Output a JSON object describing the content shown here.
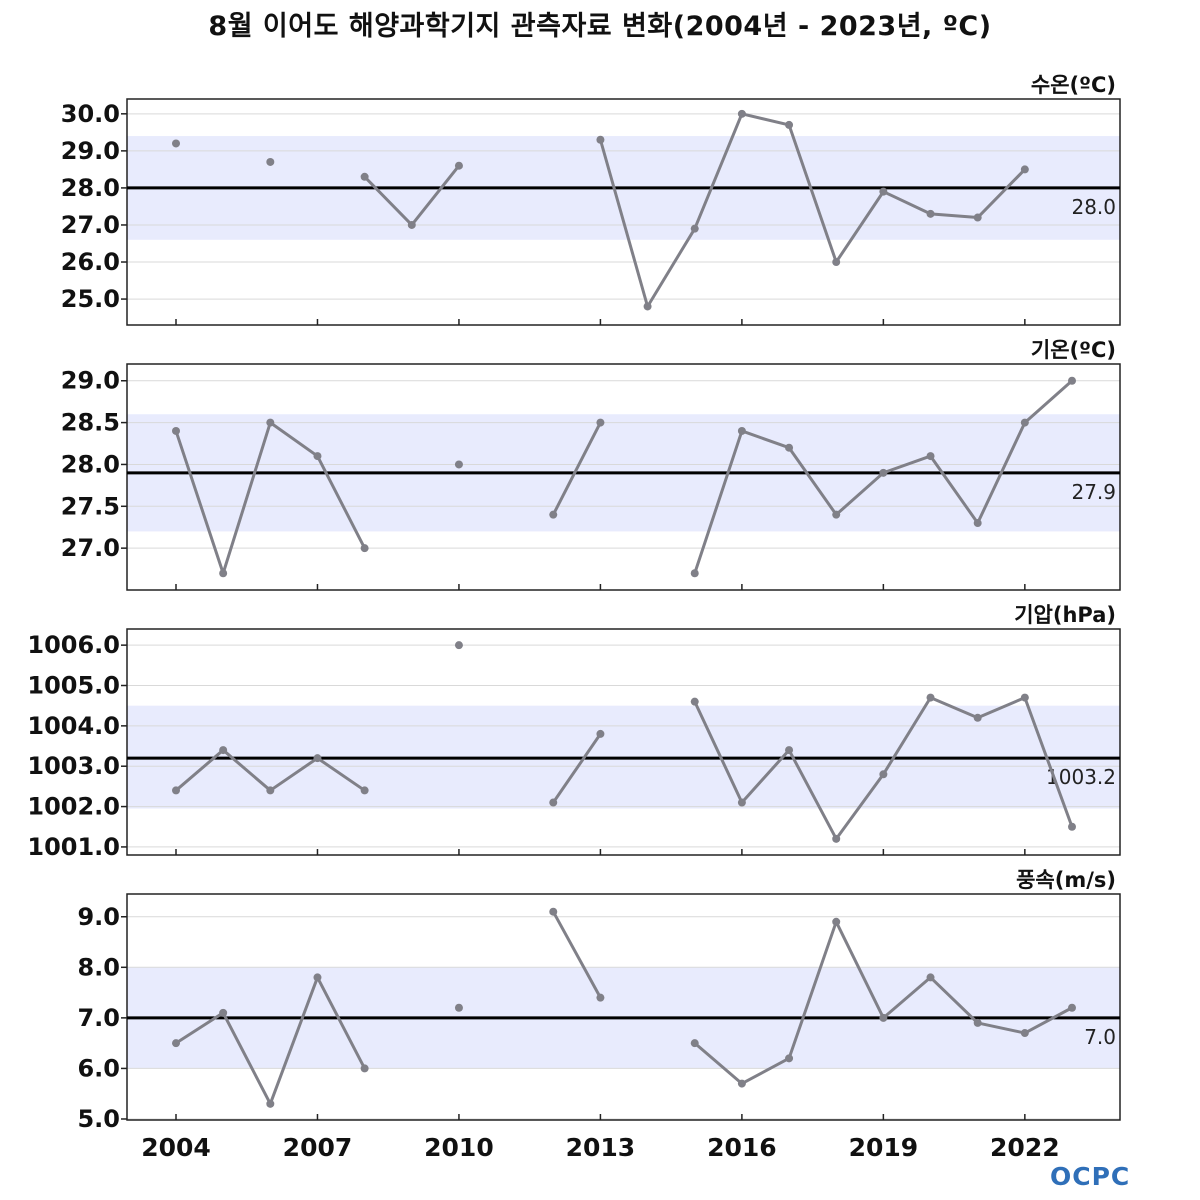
{
  "title": "8월 이어도 해양과학기지 관측자료 변화(2004년 - 2023년, ºC)",
  "logo_text": "OCPC",
  "colors": {
    "line": "#808088",
    "band": "#e8ebfd",
    "mean": "#000000",
    "grid": "#d9d9d9"
  },
  "chart_data": [
    {
      "type": "line",
      "unit_label": "수온(ºC)",
      "x": [
        2004,
        2005,
        2006,
        2007,
        2008,
        2009,
        2010,
        2011,
        2012,
        2013,
        2014,
        2015,
        2016,
        2017,
        2018,
        2019,
        2020,
        2021,
        2022,
        2023
      ],
      "values": [
        29.2,
        null,
        28.7,
        null,
        28.3,
        27.0,
        28.6,
        null,
        null,
        29.3,
        24.8,
        26.9,
        30.0,
        29.7,
        26.0,
        27.9,
        27.3,
        27.2,
        28.5,
        null
      ],
      "mean": 28.0,
      "mean_label": "28.0",
      "band": [
        26.6,
        29.4
      ],
      "ylim": [
        24.3,
        30.4
      ],
      "yticks": [
        25.0,
        26.0,
        27.0,
        28.0,
        29.0,
        30.0
      ],
      "ytick_labels": [
        "25.0",
        "26.0",
        "27.0",
        "28.0",
        "29.0",
        "30.0"
      ]
    },
    {
      "type": "line",
      "unit_label": "기온(ºC)",
      "x": [
        2004,
        2005,
        2006,
        2007,
        2008,
        2009,
        2010,
        2011,
        2012,
        2013,
        2014,
        2015,
        2016,
        2017,
        2018,
        2019,
        2020,
        2021,
        2022,
        2023
      ],
      "values": [
        28.4,
        26.7,
        28.5,
        28.1,
        27.0,
        null,
        28.0,
        null,
        27.4,
        28.5,
        null,
        26.7,
        28.4,
        28.2,
        27.4,
        27.9,
        28.1,
        27.3,
        28.5,
        29.0
      ],
      "mean": 27.9,
      "mean_label": "27.9",
      "band": [
        27.2,
        28.6
      ],
      "ylim": [
        26.5,
        29.2
      ],
      "yticks": [
        27.0,
        27.5,
        28.0,
        28.5,
        29.0
      ],
      "ytick_labels": [
        "27.0",
        "27.5",
        "28.0",
        "28.5",
        "29.0"
      ]
    },
    {
      "type": "line",
      "unit_label": "기압(hPa)",
      "x": [
        2004,
        2005,
        2006,
        2007,
        2008,
        2009,
        2010,
        2011,
        2012,
        2013,
        2014,
        2015,
        2016,
        2017,
        2018,
        2019,
        2020,
        2021,
        2022,
        2023
      ],
      "values": [
        1002.4,
        1003.4,
        1002.4,
        1003.2,
        1002.4,
        null,
        1006.0,
        null,
        1002.1,
        1003.8,
        null,
        1004.6,
        1002.1,
        1003.4,
        1001.2,
        1002.8,
        1004.7,
        1004.2,
        1004.7,
        1001.5
      ],
      "mean": 1003.2,
      "mean_label": "1003.2",
      "band": [
        1001.95,
        1004.5
      ],
      "ylim": [
        1000.8,
        1006.4
      ],
      "yticks": [
        1001.0,
        1002.0,
        1003.0,
        1004.0,
        1005.0,
        1006.0
      ],
      "ytick_labels": [
        "1001.0",
        "1002.0",
        "1003.0",
        "1004.0",
        "1005.0",
        "1006.0"
      ]
    },
    {
      "type": "line",
      "unit_label": "풍속(m/s)",
      "x": [
        2004,
        2005,
        2006,
        2007,
        2008,
        2009,
        2010,
        2011,
        2012,
        2013,
        2014,
        2015,
        2016,
        2017,
        2018,
        2019,
        2020,
        2021,
        2022,
        2023
      ],
      "values": [
        6.5,
        7.1,
        5.3,
        7.8,
        6.0,
        null,
        7.2,
        null,
        9.1,
        7.4,
        null,
        6.5,
        5.7,
        6.2,
        8.9,
        7.0,
        7.8,
        6.9,
        6.7,
        7.2
      ],
      "mean": 7.0,
      "mean_label": "7.0",
      "band": [
        6.0,
        8.0
      ],
      "ylim": [
        4.98,
        9.45
      ],
      "yticks": [
        5.0,
        6.0,
        7.0,
        8.0,
        9.0
      ],
      "ytick_labels": [
        "5.0",
        "6.0",
        "7.0",
        "8.0",
        "9.0"
      ],
      "xticks": [
        2004,
        2007,
        2010,
        2013,
        2016,
        2019,
        2022
      ],
      "xtick_labels": [
        "2004",
        "2007",
        "2010",
        "2013",
        "2016",
        "2019",
        "2022"
      ]
    }
  ]
}
